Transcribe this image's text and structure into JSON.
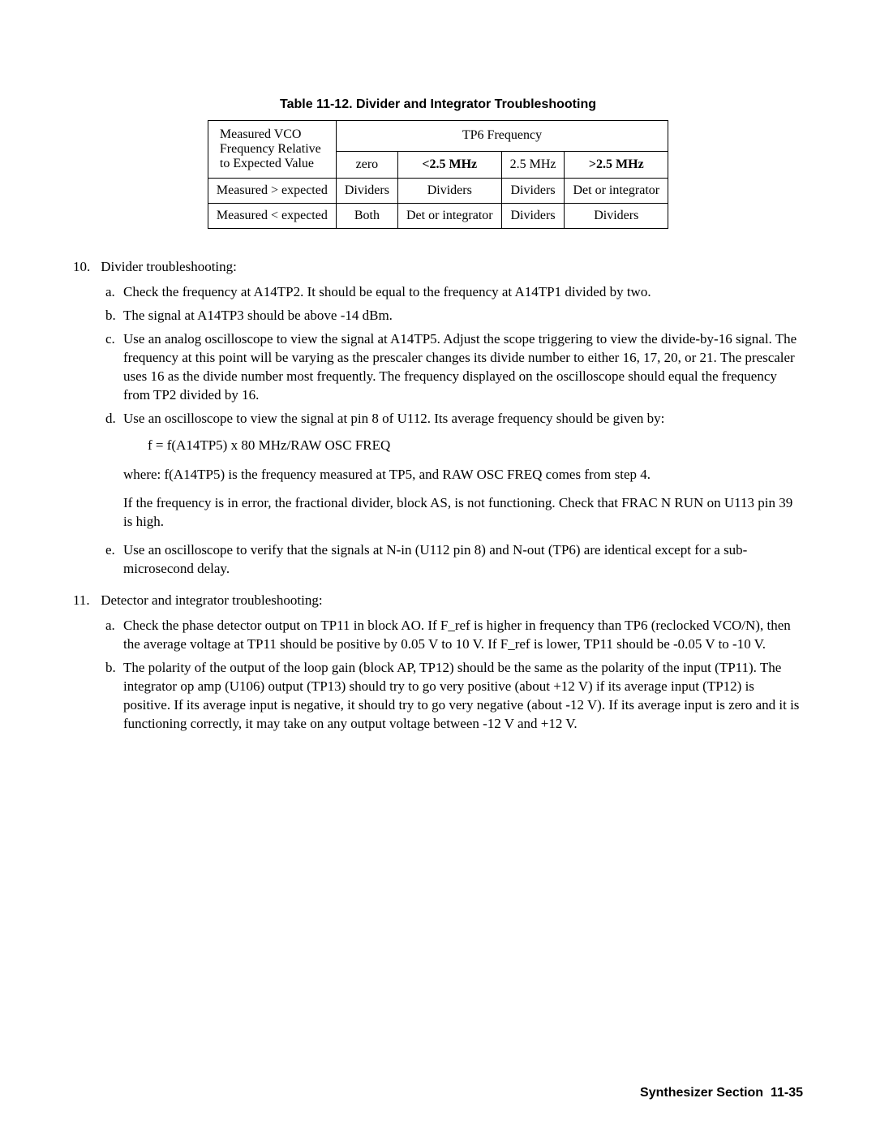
{
  "table": {
    "title": "Table 11-12. Divider and Integrator Troubleshooting",
    "header_left_line1": "Measured VCO",
    "header_left_line2": "Frequency Relative",
    "header_left_line3": "to Expected Value",
    "tp6_label": "TP6 Frequency",
    "col_zero": "zero",
    "col_lt25": "<2.5 MHz",
    "col_25": "2.5 MHz",
    "col_gt25": ">2.5 MHz",
    "row1_label": "Measured > expected",
    "row1_c1": "Dividers",
    "row1_c2": "Dividers",
    "row1_c3": "Dividers",
    "row1_c4": "Det or integrator",
    "row2_label": "Measured < expected",
    "row2_c1": "Both",
    "row2_c2": "Det or integrator",
    "row2_c3": "Dividers",
    "row2_c4": "Dividers"
  },
  "item10": {
    "num": "10.",
    "title": "Divider troubleshooting:",
    "a": "Check the frequency at A14TP2. It should be equal to the frequency at A14TP1 divided by two.",
    "b": "The signal at A14TP3 should be above -14 dBm.",
    "c": "Use an analog oscilloscope to view the signal at A14TP5. Adjust the scope triggering to view the divide-by-16 signal. The frequency at this point will be varying as the prescaler changes its divide number to either 16, 17, 20, or 21. The prescaler uses 16 as the divide number most frequently. The frequency displayed on the oscilloscope should equal the frequency from TP2 divided by 16.",
    "d": "Use an oscilloscope to view the signal at pin 8 of U112. Its average frequency should be given by:",
    "formula": "f = f(A14TP5) x 80 MHz/RAW OSC FREQ",
    "d_p1": "where: f(A14TP5) is the frequency measured at TP5, and RAW OSC FREQ comes from step 4.",
    "d_p2": "If the frequency is in error, the fractional divider, block AS, is not functioning. Check that FRAC N RUN on U113 pin 39 is high.",
    "e": "Use an oscilloscope to verify that the signals at N-in (U112 pin 8) and N-out (TP6) are identical except for a sub-microsecond delay."
  },
  "item11": {
    "num": "11.",
    "title": "Detector and integrator troubleshooting:",
    "a": "Check the phase detector output on TP11 in block AO. If F_ref is higher in frequency than TP6 (reclocked VCO/N), then the average voltage at TP11 should be positive by 0.05 V to 10 V. If F_ref is lower, TP11 should be -0.05 V to -10 V.",
    "b": "The polarity of the output of the loop gain (block AP, TP12) should be the same as the polarity of the input (TP11). The integrator op amp (U106) output (TP13) should try to go very positive (about +12 V) if its average input (TP12) is positive. If its average input is negative, it should try to go very negative (about -12 V). If its average input is zero and it is functioning correctly, it may take on any output voltage between -12 V and +12 V."
  },
  "footer": {
    "section": "Synthesizer Section",
    "page": "11-35"
  },
  "letters": {
    "a": "a.",
    "b": "b.",
    "c": "c.",
    "d": "d.",
    "e": "e."
  }
}
